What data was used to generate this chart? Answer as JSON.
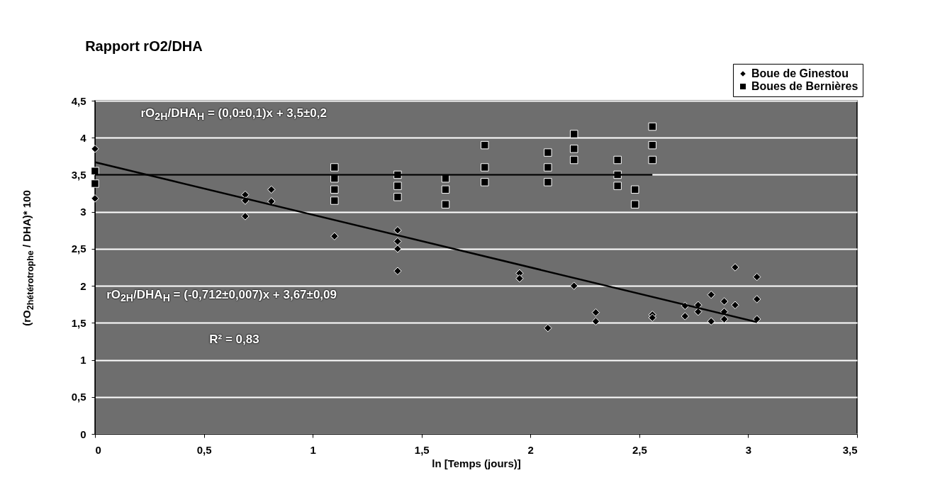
{
  "chart_data": {
    "type": "scatter",
    "title": "Rapport rO2/DHA",
    "xlabel": "ln [Temps (jours)]",
    "ylabel": "(rO$_{2hétérotrophe}$ / DHA)* 100",
    "xlim": [
      0,
      3.5
    ],
    "ylim": [
      0,
      4.5
    ],
    "xticks": [
      0,
      {
        "value": 0.5,
        "label": "0,5"
      },
      1,
      {
        "value": 1.5,
        "label": "1,5"
      },
      2,
      {
        "value": 2.5,
        "label": "2,5"
      },
      3,
      {
        "value": 3.5,
        "label": "3,5"
      }
    ],
    "yticks": [
      0,
      {
        "value": 0.5,
        "label": "0,5"
      },
      1,
      {
        "value": 1.5,
        "label": "1,5"
      },
      2,
      {
        "value": 2.5,
        "label": "2,5"
      },
      3,
      {
        "value": 3.5,
        "label": "3,5"
      },
      4,
      {
        "value": 4.5,
        "label": "4,5"
      }
    ],
    "grid": "y",
    "legend": "top right",
    "annotations": [
      "rO$_{2H}$/DHA$_{H}$ = (0,0±0,1)x + 3,5±0,2",
      "rO$_{2H}$/DHA$_{H}$ = (-0,712±0,007)x + 3,67±0,09",
      "R² = 0,83"
    ],
    "series": [
      {
        "name": "Boue de Ginestou",
        "color": "#000000",
        "marker": "diamond",
        "x": [
          0,
          0,
          0.69,
          0.69,
          0.69,
          0.81,
          0.81,
          1.1,
          1.39,
          1.39,
          1.39,
          1.39,
          1.95,
          1.95,
          2.2,
          2.08,
          2.3,
          2.3,
          2.56,
          2.56,
          2.71,
          2.71,
          2.77,
          2.77,
          2.83,
          2.83,
          2.89,
          2.89,
          2.89,
          2.94,
          2.94,
          3.04,
          3.04,
          3.04
        ],
        "values": [
          3.85,
          3.18,
          3.23,
          3.15,
          2.94,
          3.3,
          3.14,
          2.67,
          2.75,
          2.6,
          2.5,
          2.2,
          2.17,
          2.1,
          2.0,
          1.43,
          1.64,
          1.52,
          1.61,
          1.57,
          1.73,
          1.59,
          1.74,
          1.65,
          1.88,
          1.52,
          1.79,
          1.55,
          1.65,
          1.74,
          2.25,
          1.82,
          2.12,
          1.55
        ]
      },
      {
        "name": "Boues de Bernières",
        "color": "#000000",
        "marker": "square",
        "x": [
          0,
          0,
          1.1,
          1.1,
          1.1,
          1.1,
          1.39,
          1.39,
          1.39,
          1.61,
          1.61,
          1.61,
          1.79,
          1.79,
          1.79,
          2.08,
          2.08,
          2.08,
          2.2,
          2.2,
          2.2,
          2.4,
          2.4,
          2.4,
          2.48,
          2.48,
          2.56,
          2.56,
          2.56
        ],
        "values": [
          3.55,
          3.38,
          3.6,
          3.45,
          3.3,
          3.15,
          3.5,
          3.35,
          3.2,
          3.45,
          3.3,
          3.1,
          3.9,
          3.6,
          3.4,
          3.8,
          3.6,
          3.4,
          4.05,
          3.85,
          3.7,
          3.7,
          3.5,
          3.35,
          3.3,
          3.1,
          4.15,
          3.9,
          3.7
        ]
      },
      {
        "type": "line",
        "color": "#000000",
        "x": [
          0,
          2.56
        ],
        "values": [
          3.5,
          3.5
        ]
      },
      {
        "type": "line",
        "color": "#000000",
        "x": [
          0,
          3.04
        ],
        "values": [
          3.67,
          1.51
        ]
      }
    ]
  }
}
